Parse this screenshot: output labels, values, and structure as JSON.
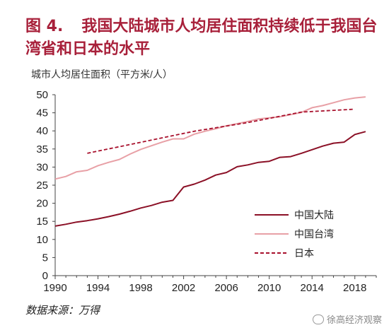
{
  "title": {
    "fig_no": "图 4.",
    "text": "我国大陆城市人均居住面积持续低于我国台湾省和日本的水平"
  },
  "source_note": "数据来源：万得",
  "watermark": "徐高经济观察",
  "colors": {
    "title": "#a8203a",
    "mainland": "#8b1026",
    "taiwan": "#e8a0a6",
    "japan": "#a8102c",
    "axis": "#444444"
  },
  "chart_data": {
    "type": "line",
    "title": "",
    "ylabel": "城市人均居住面积（平方米/人）",
    "xlabel": "",
    "xlim": [
      1990,
      2020
    ],
    "ylim": [
      0,
      50
    ],
    "x_ticks": [
      1990,
      1994,
      1998,
      2002,
      2006,
      2010,
      2014,
      2018
    ],
    "y_ticks": [
      0,
      5,
      10,
      15,
      20,
      25,
      30,
      35,
      40,
      45,
      50
    ],
    "grid": false,
    "legend_position": "bottom-right",
    "series": [
      {
        "name": "中国大陆",
        "style": "solid",
        "color": "#8b1026",
        "x": [
          1990,
          1991,
          1992,
          1993,
          1994,
          1995,
          1996,
          1997,
          1998,
          1999,
          2000,
          2001,
          2002,
          2003,
          2004,
          2005,
          2006,
          2007,
          2008,
          2009,
          2010,
          2011,
          2012,
          2013,
          2014,
          2015,
          2016,
          2017,
          2018,
          2019
        ],
        "y": [
          13.7,
          14.2,
          14.8,
          15.2,
          15.7,
          16.3,
          17.0,
          17.8,
          18.7,
          19.4,
          20.3,
          20.8,
          24.5,
          25.3,
          26.4,
          27.8,
          28.5,
          30.1,
          30.6,
          31.3,
          31.6,
          32.7,
          32.9,
          33.8,
          34.8,
          35.8,
          36.6,
          36.9,
          39.0,
          39.8
        ]
      },
      {
        "name": "中国台湾",
        "style": "solid",
        "color": "#e8a0a6",
        "x": [
          1990,
          1991,
          1992,
          1993,
          1994,
          1995,
          1996,
          1997,
          1998,
          1999,
          2000,
          2001,
          2002,
          2003,
          2004,
          2005,
          2006,
          2007,
          2008,
          2009,
          2010,
          2011,
          2012,
          2013,
          2014,
          2015,
          2016,
          2017,
          2018,
          2019
        ],
        "y": [
          26.7,
          27.4,
          28.7,
          29.1,
          30.4,
          31.3,
          32.1,
          33.6,
          34.9,
          35.9,
          36.9,
          37.8,
          37.8,
          39.1,
          39.9,
          40.6,
          41.4,
          42.0,
          42.6,
          43.3,
          43.6,
          43.9,
          44.5,
          45.1,
          46.4,
          47.0,
          47.8,
          48.6,
          49.1,
          49.4
        ]
      },
      {
        "name": "日本",
        "style": "dashed",
        "color": "#a8102c",
        "x": [
          1993,
          2003,
          2008,
          2013,
          2018
        ],
        "y": [
          33.8,
          39.9,
          42.3,
          45.2,
          46.0
        ]
      }
    ]
  }
}
